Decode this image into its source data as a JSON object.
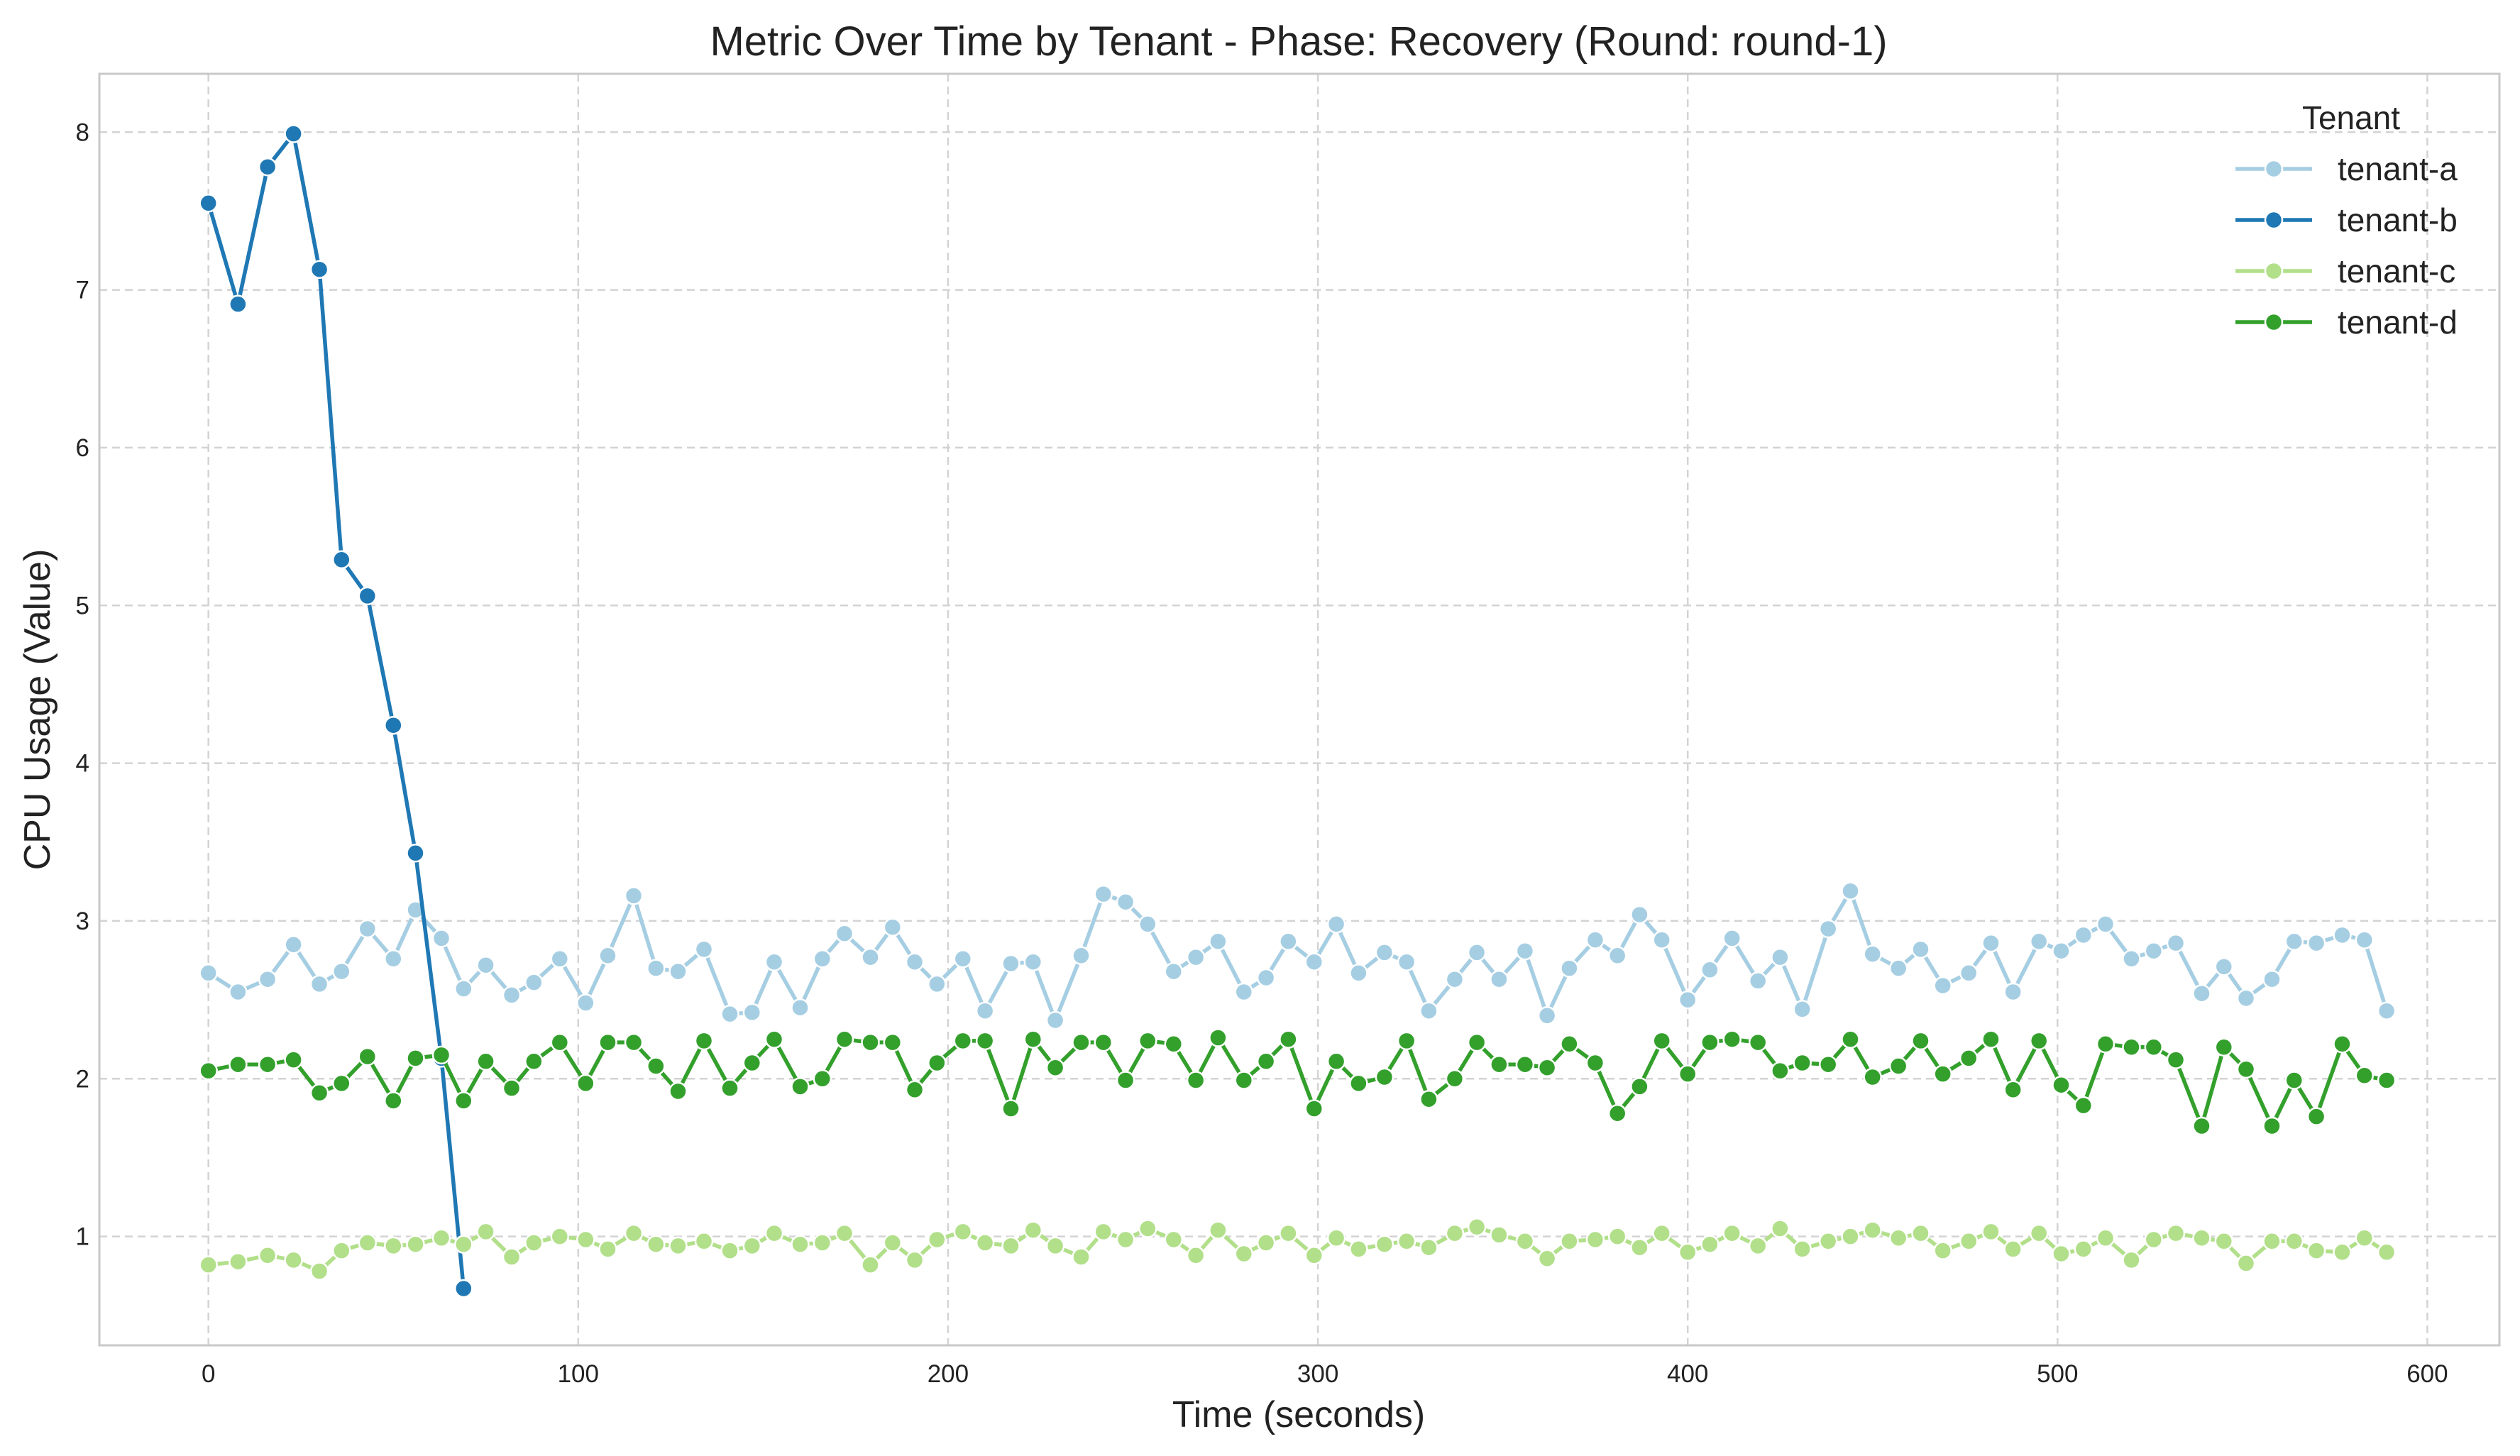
{
  "chart_data": {
    "type": "line",
    "title": "Metric Over Time by Tenant - Phase: Recovery (Round: round-1)",
    "xlabel": "Time (seconds)",
    "ylabel": "CPU Usage (Value)",
    "xlim": [
      -29.5,
      619.5
    ],
    "ylim": [
      0.31,
      8.37
    ],
    "x_ticks": [
      0,
      100,
      200,
      300,
      400,
      500,
      600
    ],
    "y_ticks": [
      1,
      2,
      3,
      4,
      5,
      6,
      7,
      8
    ],
    "grid": true,
    "legend_title": "Tenant",
    "legend_position": "top-right",
    "series": [
      {
        "name": "tenant-a",
        "color": "#a6cee3",
        "points": [
          [
            0,
            2.67
          ],
          [
            8,
            2.55
          ],
          [
            16,
            2.63
          ],
          [
            23,
            2.85
          ],
          [
            30,
            2.6
          ],
          [
            36,
            2.68
          ],
          [
            43,
            2.95
          ],
          [
            50,
            2.76
          ],
          [
            56,
            3.07
          ],
          [
            63,
            2.89
          ],
          [
            69,
            2.57
          ],
          [
            75,
            2.72
          ],
          [
            82,
            2.53
          ],
          [
            88,
            2.61
          ],
          [
            95,
            2.76
          ],
          [
            102,
            2.48
          ],
          [
            108,
            2.78
          ],
          [
            115,
            3.16
          ],
          [
            121,
            2.7
          ],
          [
            127,
            2.68
          ],
          [
            134,
            2.82
          ],
          [
            141,
            2.41
          ],
          [
            147,
            2.42
          ],
          [
            153,
            2.74
          ],
          [
            160,
            2.45
          ],
          [
            166,
            2.76
          ],
          [
            172,
            2.92
          ],
          [
            179,
            2.77
          ],
          [
            185,
            2.96
          ],
          [
            191,
            2.74
          ],
          [
            197,
            2.6
          ],
          [
            204,
            2.76
          ],
          [
            210,
            2.43
          ],
          [
            217,
            2.73
          ],
          [
            223,
            2.74
          ],
          [
            229,
            2.37
          ],
          [
            236,
            2.78
          ],
          [
            242,
            3.17
          ],
          [
            248,
            3.12
          ],
          [
            254,
            2.98
          ],
          [
            261,
            2.68
          ],
          [
            267,
            2.77
          ],
          [
            273,
            2.87
          ],
          [
            280,
            2.55
          ],
          [
            286,
            2.64
          ],
          [
            292,
            2.87
          ],
          [
            299,
            2.74
          ],
          [
            305,
            2.98
          ],
          [
            311,
            2.67
          ],
          [
            318,
            2.8
          ],
          [
            324,
            2.74
          ],
          [
            330,
            2.43
          ],
          [
            337,
            2.63
          ],
          [
            343,
            2.8
          ],
          [
            349,
            2.63
          ],
          [
            356,
            2.81
          ],
          [
            362,
            2.4
          ],
          [
            368,
            2.7
          ],
          [
            375,
            2.88
          ],
          [
            381,
            2.78
          ],
          [
            387,
            3.04
          ],
          [
            393,
            2.88
          ],
          [
            400,
            2.5
          ],
          [
            406,
            2.69
          ],
          [
            412,
            2.89
          ],
          [
            419,
            2.62
          ],
          [
            425,
            2.77
          ],
          [
            431,
            2.44
          ],
          [
            438,
            2.95
          ],
          [
            444,
            3.19
          ],
          [
            450,
            2.79
          ],
          [
            457,
            2.7
          ],
          [
            463,
            2.82
          ],
          [
            469,
            2.59
          ],
          [
            476,
            2.67
          ],
          [
            482,
            2.86
          ],
          [
            488,
            2.55
          ],
          [
            495,
            2.87
          ],
          [
            501,
            2.81
          ],
          [
            507,
            2.91
          ],
          [
            513,
            2.98
          ],
          [
            520,
            2.76
          ],
          [
            526,
            2.81
          ],
          [
            532,
            2.86
          ],
          [
            539,
            2.54
          ],
          [
            545,
            2.71
          ],
          [
            551,
            2.51
          ],
          [
            558,
            2.63
          ],
          [
            564,
            2.87
          ],
          [
            570,
            2.86
          ],
          [
            577,
            2.91
          ],
          [
            583,
            2.88
          ],
          [
            589,
            2.43
          ]
        ]
      },
      {
        "name": "tenant-b",
        "color": "#1f78b4",
        "points": [
          [
            0,
            7.55
          ],
          [
            8,
            6.91
          ],
          [
            16,
            7.78
          ],
          [
            23,
            7.99
          ],
          [
            30,
            7.13
          ],
          [
            36,
            5.29
          ],
          [
            43,
            5.06
          ],
          [
            50,
            4.24
          ],
          [
            56,
            3.43
          ],
          [
            63,
            2.13
          ],
          [
            69,
            0.67
          ]
        ]
      },
      {
        "name": "tenant-c",
        "color": "#b2df8a",
        "points": [
          [
            0,
            0.82
          ],
          [
            8,
            0.84
          ],
          [
            16,
            0.88
          ],
          [
            23,
            0.85
          ],
          [
            30,
            0.78
          ],
          [
            36,
            0.91
          ],
          [
            43,
            0.96
          ],
          [
            50,
            0.94
          ],
          [
            56,
            0.95
          ],
          [
            63,
            0.99
          ],
          [
            69,
            0.95
          ],
          [
            75,
            1.03
          ],
          [
            82,
            0.87
          ],
          [
            88,
            0.96
          ],
          [
            95,
            1.0
          ],
          [
            102,
            0.98
          ],
          [
            108,
            0.92
          ],
          [
            115,
            1.02
          ],
          [
            121,
            0.95
          ],
          [
            127,
            0.94
          ],
          [
            134,
            0.97
          ],
          [
            141,
            0.91
          ],
          [
            147,
            0.94
          ],
          [
            153,
            1.02
          ],
          [
            160,
            0.95
          ],
          [
            166,
            0.96
          ],
          [
            172,
            1.02
          ],
          [
            179,
            0.82
          ],
          [
            185,
            0.96
          ],
          [
            191,
            0.85
          ],
          [
            197,
            0.98
          ],
          [
            204,
            1.03
          ],
          [
            210,
            0.96
          ],
          [
            217,
            0.94
          ],
          [
            223,
            1.04
          ],
          [
            229,
            0.94
          ],
          [
            236,
            0.87
          ],
          [
            242,
            1.03
          ],
          [
            248,
            0.98
          ],
          [
            254,
            1.05
          ],
          [
            261,
            0.98
          ],
          [
            267,
            0.88
          ],
          [
            273,
            1.04
          ],
          [
            280,
            0.89
          ],
          [
            286,
            0.96
          ],
          [
            292,
            1.02
          ],
          [
            299,
            0.88
          ],
          [
            305,
            0.99
          ],
          [
            311,
            0.92
          ],
          [
            318,
            0.95
          ],
          [
            324,
            0.97
          ],
          [
            330,
            0.93
          ],
          [
            337,
            1.02
          ],
          [
            343,
            1.06
          ],
          [
            349,
            1.01
          ],
          [
            356,
            0.97
          ],
          [
            362,
            0.86
          ],
          [
            368,
            0.97
          ],
          [
            375,
            0.98
          ],
          [
            381,
            1.0
          ],
          [
            387,
            0.93
          ],
          [
            393,
            1.02
          ],
          [
            400,
            0.9
          ],
          [
            406,
            0.95
          ],
          [
            412,
            1.02
          ],
          [
            419,
            0.94
          ],
          [
            425,
            1.05
          ],
          [
            431,
            0.92
          ],
          [
            438,
            0.97
          ],
          [
            444,
            1.0
          ],
          [
            450,
            1.04
          ],
          [
            457,
            0.99
          ],
          [
            463,
            1.02
          ],
          [
            469,
            0.91
          ],
          [
            476,
            0.97
          ],
          [
            482,
            1.03
          ],
          [
            488,
            0.92
          ],
          [
            495,
            1.02
          ],
          [
            501,
            0.89
          ],
          [
            507,
            0.92
          ],
          [
            513,
            0.99
          ],
          [
            520,
            0.85
          ],
          [
            526,
            0.98
          ],
          [
            532,
            1.02
          ],
          [
            539,
            0.99
          ],
          [
            545,
            0.97
          ],
          [
            551,
            0.83
          ],
          [
            558,
            0.97
          ],
          [
            564,
            0.97
          ],
          [
            570,
            0.91
          ],
          [
            577,
            0.9
          ],
          [
            583,
            0.99
          ],
          [
            589,
            0.9
          ]
        ]
      },
      {
        "name": "tenant-d",
        "color": "#33a02c",
        "points": [
          [
            0,
            2.05
          ],
          [
            8,
            2.09
          ],
          [
            16,
            2.09
          ],
          [
            23,
            2.12
          ],
          [
            30,
            1.91
          ],
          [
            36,
            1.97
          ],
          [
            43,
            2.14
          ],
          [
            50,
            1.86
          ],
          [
            56,
            2.13
          ],
          [
            63,
            2.15
          ],
          [
            69,
            1.86
          ],
          [
            75,
            2.11
          ],
          [
            82,
            1.94
          ],
          [
            88,
            2.11
          ],
          [
            95,
            2.23
          ],
          [
            102,
            1.97
          ],
          [
            108,
            2.23
          ],
          [
            115,
            2.23
          ],
          [
            121,
            2.08
          ],
          [
            127,
            1.92
          ],
          [
            134,
            2.24
          ],
          [
            141,
            1.94
          ],
          [
            147,
            2.1
          ],
          [
            153,
            2.25
          ],
          [
            160,
            1.95
          ],
          [
            166,
            2.0
          ],
          [
            172,
            2.25
          ],
          [
            179,
            2.23
          ],
          [
            185,
            2.23
          ],
          [
            191,
            1.93
          ],
          [
            197,
            2.1
          ],
          [
            204,
            2.24
          ],
          [
            210,
            2.24
          ],
          [
            217,
            1.81
          ],
          [
            223,
            2.25
          ],
          [
            229,
            2.07
          ],
          [
            236,
            2.23
          ],
          [
            242,
            2.23
          ],
          [
            248,
            1.99
          ],
          [
            254,
            2.24
          ],
          [
            261,
            2.22
          ],
          [
            267,
            1.99
          ],
          [
            273,
            2.26
          ],
          [
            280,
            1.99
          ],
          [
            286,
            2.11
          ],
          [
            292,
            2.25
          ],
          [
            299,
            1.81
          ],
          [
            305,
            2.11
          ],
          [
            311,
            1.97
          ],
          [
            318,
            2.01
          ],
          [
            324,
            2.24
          ],
          [
            330,
            1.87
          ],
          [
            337,
            2.0
          ],
          [
            343,
            2.23
          ],
          [
            349,
            2.09
          ],
          [
            356,
            2.09
          ],
          [
            362,
            2.07
          ],
          [
            368,
            2.22
          ],
          [
            375,
            2.1
          ],
          [
            381,
            1.78
          ],
          [
            387,
            1.95
          ],
          [
            393,
            2.24
          ],
          [
            400,
            2.03
          ],
          [
            406,
            2.23
          ],
          [
            412,
            2.25
          ],
          [
            419,
            2.23
          ],
          [
            425,
            2.05
          ],
          [
            431,
            2.1
          ],
          [
            438,
            2.09
          ],
          [
            444,
            2.25
          ],
          [
            450,
            2.01
          ],
          [
            457,
            2.08
          ],
          [
            463,
            2.24
          ],
          [
            469,
            2.03
          ],
          [
            476,
            2.13
          ],
          [
            482,
            2.25
          ],
          [
            488,
            1.93
          ],
          [
            495,
            2.24
          ],
          [
            501,
            1.96
          ],
          [
            507,
            1.83
          ],
          [
            513,
            2.22
          ],
          [
            520,
            2.2
          ],
          [
            526,
            2.2
          ],
          [
            532,
            2.12
          ],
          [
            539,
            1.7
          ],
          [
            545,
            2.2
          ],
          [
            551,
            2.06
          ],
          [
            558,
            1.7
          ],
          [
            564,
            1.99
          ],
          [
            570,
            1.76
          ],
          [
            577,
            2.22
          ],
          [
            583,
            2.02
          ],
          [
            589,
            1.99
          ]
        ]
      }
    ]
  }
}
